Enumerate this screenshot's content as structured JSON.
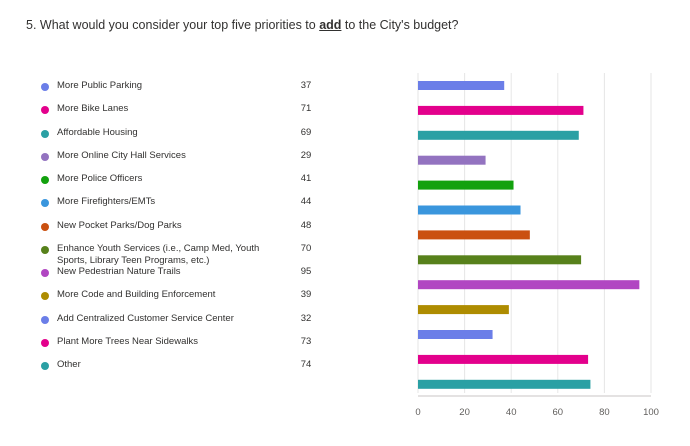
{
  "question": {
    "prefix": "5. What would you consider your top five priorities to ",
    "keyword": "add",
    "suffix": " to the City's budget?"
  },
  "chart_data": {
    "type": "bar",
    "orientation": "horizontal",
    "title": "5. What would you consider your top five priorities to add to the City's budget?",
    "categories": [
      "More Public Parking",
      "More Bike Lanes",
      "Affordable Housing",
      "More Online City Hall Services",
      "More Police Officers",
      "More Firefighters/EMTs",
      "New Pocket Parks/Dog Parks",
      "Enhance Youth Services (i.e., Camp Med, Youth Sports, Library Teen Programs, etc.)",
      "New Pedestrian Nature Trails",
      "More Code and Building Enforcement",
      "Add Centralized Customer Service Center",
      "Plant More Trees Near Sidewalks",
      "Other"
    ],
    "values": [
      37,
      71,
      69,
      29,
      41,
      44,
      48,
      70,
      95,
      39,
      32,
      73,
      74
    ],
    "colors": [
      "#6b7ee8",
      "#e3008c",
      "#2aa0a4",
      "#9373c0",
      "#13a10e",
      "#3a96dd",
      "#ca5010",
      "#57811b",
      "#b146c2",
      "#ae8c00",
      "#6b7ee8",
      "#e3008c",
      "#2aa0a4"
    ],
    "xlim": [
      0,
      100
    ],
    "xticks": [
      0,
      20,
      40,
      60,
      80,
      100
    ],
    "grid": true,
    "legend": "left"
  }
}
